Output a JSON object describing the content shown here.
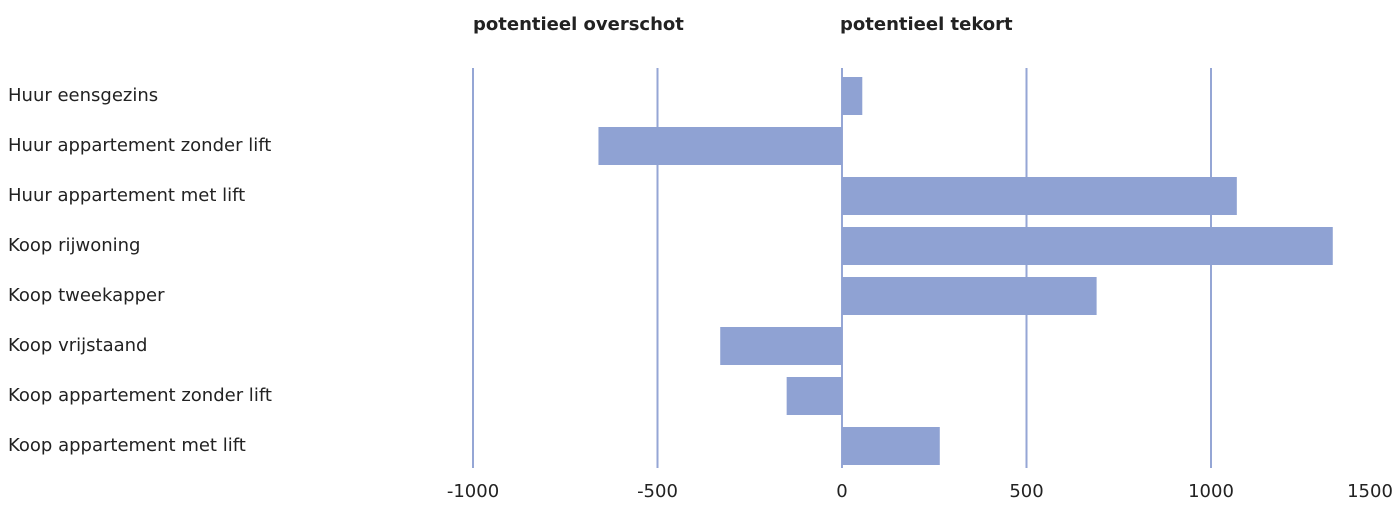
{
  "chart_data": {
    "type": "barh",
    "headers": [
      "potentieel overschot",
      "potentieel tekort"
    ],
    "categories": [
      "Huur eensgezins",
      "Huur appartement zonder lift",
      "Huur appartement met lift",
      "Koop rijwoning",
      "Koop tweekapper",
      "Koop vrijstaand",
      "Koop appartement zonder lift",
      "Koop appartement met lift"
    ],
    "values": [
      55,
      -660,
      1070,
      1330,
      690,
      -330,
      -150,
      265
    ],
    "color": "#8fa2d3",
    "xlim": [
      -1000,
      1500
    ],
    "xticks": [
      -1000,
      -500,
      0,
      500,
      1000,
      1500
    ],
    "grid": true
  }
}
